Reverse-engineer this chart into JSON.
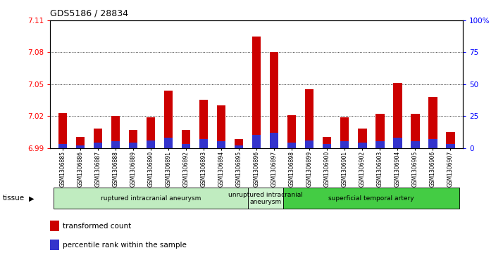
{
  "title": "GDS5186 / 28834",
  "samples": [
    "GSM1306885",
    "GSM1306886",
    "GSM1306887",
    "GSM1306888",
    "GSM1306889",
    "GSM1306890",
    "GSM1306891",
    "GSM1306892",
    "GSM1306893",
    "GSM1306894",
    "GSM1306895",
    "GSM1306896",
    "GSM1306897",
    "GSM1306898",
    "GSM1306899",
    "GSM1306900",
    "GSM1306901",
    "GSM1306902",
    "GSM1306903",
    "GSM1306904",
    "GSM1306905",
    "GSM1306906",
    "GSM1306907"
  ],
  "red_values": [
    7.023,
    7.0,
    7.008,
    7.02,
    7.007,
    7.019,
    7.044,
    7.007,
    7.035,
    7.03,
    6.998,
    7.095,
    7.08,
    7.021,
    7.045,
    7.0,
    7.019,
    7.008,
    7.022,
    7.051,
    7.022,
    7.038,
    7.005
  ],
  "blue_percentiles": [
    3,
    2,
    4,
    5,
    4,
    6,
    8,
    3,
    7,
    5,
    2,
    10,
    12,
    4,
    6,
    3,
    5,
    4,
    5,
    8,
    5,
    7,
    3
  ],
  "groups": [
    {
      "label": "ruptured intracranial aneurysm",
      "start": 0,
      "end": 11
    },
    {
      "label": "unruptured intracranial\naneurysm",
      "start": 11,
      "end": 13
    },
    {
      "label": "superficial temporal artery",
      "start": 13,
      "end": 23
    }
  ],
  "group_colors": [
    "#c0ecc0",
    "#d0f4d0",
    "#44cc44"
  ],
  "ymin": 6.99,
  "ymax": 7.11,
  "yticks": [
    6.99,
    7.02,
    7.05,
    7.08,
    7.11
  ],
  "y2min": 0,
  "y2max": 100,
  "y2ticks": [
    0,
    25,
    50,
    75,
    100
  ],
  "y2ticklabels": [
    "0",
    "25",
    "50",
    "75",
    "100%"
  ],
  "bar_color_red": "#cc0000",
  "bar_color_blue": "#3333cc",
  "bg_color": "#e8e8e8",
  "plot_bg": "#ffffff",
  "legend_red": "transformed count",
  "legend_blue": "percentile rank within the sample",
  "tissue_label": "tissue"
}
